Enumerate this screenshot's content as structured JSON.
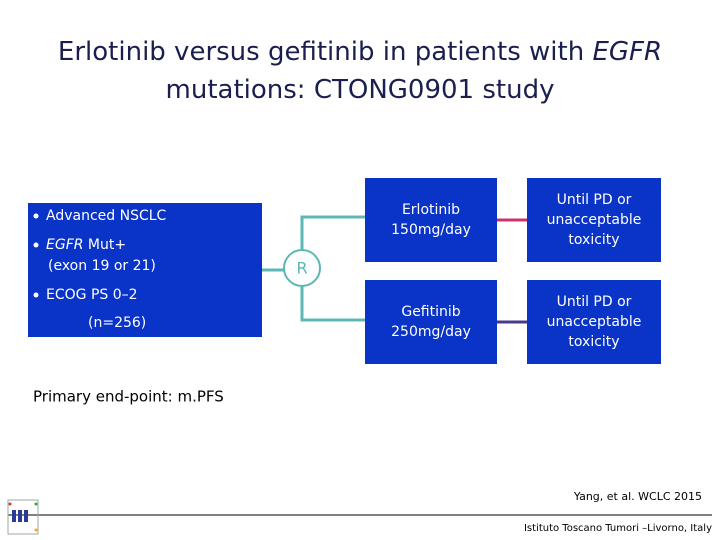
{
  "title": {
    "lines": [
      [
        {
          "text": "Erlotinib versus gefitinib in patients with ",
          "italic": false
        },
        {
          "text": "EGFR",
          "italic": true
        }
      ],
      [
        {
          "text": "mutations: CTONG0901 study",
          "italic": false
        }
      ]
    ]
  },
  "eligibility": {
    "bullets": [
      {
        "lines": [
          [
            {
              "text": "Advanced NSCLC",
              "italic": false
            }
          ]
        ]
      },
      {
        "lines": [
          [
            {
              "text": "EGFR",
              "italic": true
            },
            {
              "text": " Mut+",
              "italic": false
            }
          ],
          [
            {
              "text": "(exon 19 or 21)",
              "italic": false
            }
          ]
        ]
      },
      {
        "lines": [
          [
            {
              "text": "ECOG PS 0–2",
              "italic": false
            }
          ]
        ]
      }
    ],
    "sample": "(n=256)"
  },
  "randomization": "R",
  "arms": [
    {
      "drug": [
        "Erlotinib",
        "150mg/day"
      ],
      "duration": [
        "Until PD or",
        "unacceptable",
        "toxicity"
      ],
      "connector_color": "#c8336e"
    },
    {
      "drug": [
        "Gefitinib",
        "250mg/day"
      ],
      "duration": [
        "Until PD or",
        "unacceptable",
        "toxicity"
      ],
      "connector_color": "#4a3a8c"
    }
  ],
  "endpoint": "Primary end-point: m.PFS",
  "citation": "Yang, et al. WCLC 2015",
  "footer": "Istituto Toscano Tumori –Livorno, Italy"
}
